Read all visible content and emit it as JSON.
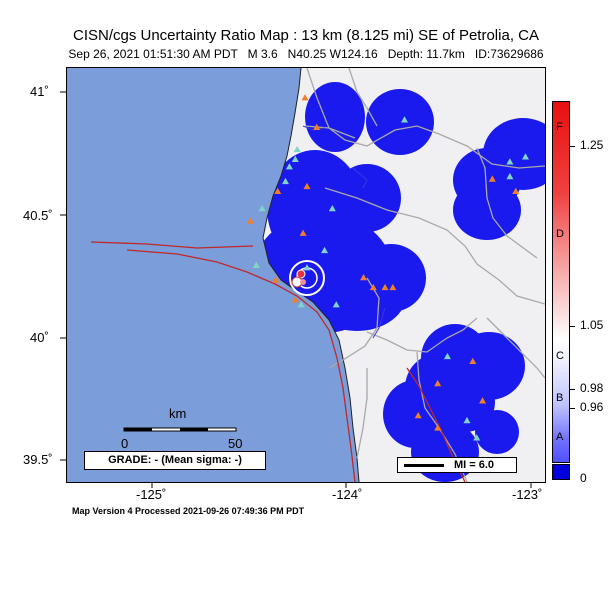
{
  "header": {
    "title": "CISN/cgs Uncertainty Ratio Map : 13 km (8.125 mi) SE of Petrolia, CA",
    "subtitle": "Sep 26, 2021 01:51:30 AM PDT   M 3.6   N40.25 W124.16   Depth: 11.7km   ID:73629686"
  },
  "axes": {
    "lon_labels": [
      "-125˚",
      "-124˚",
      "-123˚"
    ],
    "lat_labels": [
      "41˚",
      "40.5˚",
      "40˚",
      "39.5˚"
    ]
  },
  "epicenter": {
    "lat": 40.25,
    "lon": -124.16
  },
  "map_extent": {
    "lon_min": -125.4,
    "lon_max": -122.95,
    "lat_min": 39.42,
    "lat_max": 41.1
  },
  "stations": [
    {
      "lon": -124.18,
      "lat": 40.98,
      "kind": "intensity"
    },
    {
      "lon": -124.12,
      "lat": 40.86,
      "kind": "intensity"
    },
    {
      "lon": -124.22,
      "lat": 40.77,
      "kind": "seismic"
    },
    {
      "lon": -124.23,
      "lat": 40.73,
      "kind": "seismic"
    },
    {
      "lon": -124.26,
      "lat": 40.7,
      "kind": "seismic"
    },
    {
      "lon": -124.28,
      "lat": 40.64,
      "kind": "seismic"
    },
    {
      "lon": -124.32,
      "lat": 40.6,
      "kind": "intensity"
    },
    {
      "lon": -124.17,
      "lat": 40.62,
      "kind": "intensity"
    },
    {
      "lon": -124.4,
      "lat": 40.53,
      "kind": "seismic"
    },
    {
      "lon": -124.46,
      "lat": 40.48,
      "kind": "intensity"
    },
    {
      "lon": -124.19,
      "lat": 40.43,
      "kind": "intensity"
    },
    {
      "lon": -124.08,
      "lat": 40.36,
      "kind": "seismic"
    },
    {
      "lon": -124.43,
      "lat": 40.3,
      "kind": "seismic"
    },
    {
      "lon": -124.33,
      "lat": 40.24,
      "kind": "intensity"
    },
    {
      "lon": -124.17,
      "lat": 40.29,
      "kind": "seismic"
    },
    {
      "lon": -124.02,
      "lat": 40.14,
      "kind": "seismic"
    },
    {
      "lon": -124.2,
      "lat": 40.14,
      "kind": "seismic"
    },
    {
      "lon": -124.23,
      "lat": 40.16,
      "kind": "intensity"
    },
    {
      "lon": -123.88,
      "lat": 40.25,
      "kind": "intensity"
    },
    {
      "lon": -123.83,
      "lat": 40.21,
      "kind": "intensity"
    },
    {
      "lon": -123.77,
      "lat": 40.21,
      "kind": "intensity"
    },
    {
      "lon": -123.73,
      "lat": 40.21,
      "kind": "intensity"
    },
    {
      "lon": -124.04,
      "lat": 40.53,
      "kind": "seismic"
    },
    {
      "lon": -123.67,
      "lat": 40.89,
      "kind": "seismic"
    },
    {
      "lon": -123.45,
      "lat": 39.93,
      "kind": "seismic"
    },
    {
      "lon": -123.32,
      "lat": 39.91,
      "kind": "intensity"
    },
    {
      "lon": -123.5,
      "lat": 39.82,
      "kind": "intensity"
    },
    {
      "lon": -123.35,
      "lat": 39.67,
      "kind": "seismic"
    },
    {
      "lon": -123.6,
      "lat": 39.69,
      "kind": "intensity"
    },
    {
      "lon": -123.5,
      "lat": 39.64,
      "kind": "intensity"
    },
    {
      "lon": -123.3,
      "lat": 39.6,
      "kind": "seismic"
    },
    {
      "lon": -123.27,
      "lat": 39.75,
      "kind": "intensity"
    },
    {
      "lon": -123.22,
      "lat": 40.65,
      "kind": "intensity"
    },
    {
      "lon": -123.13,
      "lat": 40.66,
      "kind": "seismic"
    },
    {
      "lon": -123.1,
      "lat": 40.6,
      "kind": "intensity"
    },
    {
      "lon": -123.13,
      "lat": 40.72,
      "kind": "seismic"
    },
    {
      "lon": -123.05,
      "lat": 40.74,
      "kind": "seismic"
    }
  ],
  "scale_bar": {
    "unit": "km",
    "start": "0",
    "end": "50"
  },
  "grade": "GRADE: - (Mean sigma: -)",
  "mi_legend": "MI = 6.0",
  "colorbar": {
    "letters": [
      "F",
      "D",
      "C",
      "B",
      "A"
    ],
    "values": [
      "1.25",
      "1.05",
      "0.98",
      "0.96",
      "0"
    ]
  },
  "footer": "Map Version 4 Processed 2021-09-26 07:49:36 PM PDT",
  "colors": {
    "ocean": "#7b9dd9",
    "land": "#f0f0f2",
    "uncertainty_blue": "#1a1aee",
    "fault": "#c0282a",
    "roads": "#a9a9a9",
    "station_seismic": "#7fd6c8",
    "station_intensity": "#f07f2a"
  }
}
